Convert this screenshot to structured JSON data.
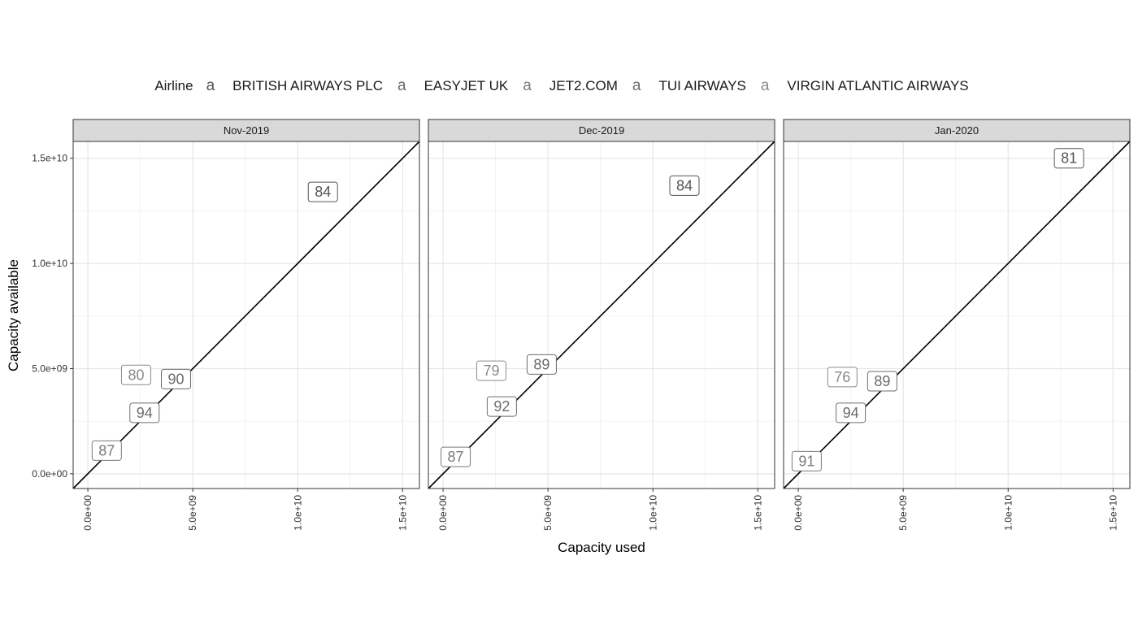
{
  "legend": {
    "title": "Airline",
    "key_glyph": "a",
    "items": [
      {
        "name": "BRITISH AIRWAYS PLC",
        "color": "#555555"
      },
      {
        "name": "EASYJET UK",
        "color": "#6b6b6b"
      },
      {
        "name": "JET2.COM",
        "color": "#7a7a7a"
      },
      {
        "name": "TUI AIRWAYS",
        "color": "#6e6e6e"
      },
      {
        "name": "VIRGIN ATLANTIC AIRWAYS",
        "color": "#8a8a8a"
      }
    ]
  },
  "chart_data": {
    "type": "scatter",
    "xlabel": "Capacity used",
    "ylabel": "Capacity available",
    "xlim": [
      -700000000,
      15800000000
    ],
    "ylim": [
      -700000000,
      15800000000
    ],
    "x_ticks": [
      "0.0e+00",
      "5.0e+09",
      "1.0e+10",
      "1.5e+10"
    ],
    "x_tick_values": [
      0,
      5000000000,
      10000000000,
      15000000000
    ],
    "y_ticks": [
      "0.0e+00",
      "5.0e+09",
      "1.0e+10",
      "1.5e+10"
    ],
    "y_tick_values": [
      0,
      5000000000,
      10000000000,
      15000000000
    ],
    "reference_line": "y = x",
    "grid": true,
    "legend_position": "top",
    "panels": [
      {
        "title": "Nov-2019",
        "labels": [
          {
            "airline": "BRITISH AIRWAYS PLC",
            "label": "84",
            "x": 11200000000,
            "y": 13400000000
          },
          {
            "airline": "VIRGIN ATLANTIC AIRWAYS",
            "label": "80",
            "x": 2300000000,
            "y": 4700000000
          },
          {
            "airline": "EASYJET UK",
            "label": "90",
            "x": 4200000000,
            "y": 4500000000
          },
          {
            "airline": "TUI AIRWAYS",
            "label": "94",
            "x": 2700000000,
            "y": 2900000000
          },
          {
            "airline": "JET2.COM",
            "label": "87",
            "x": 900000000,
            "y": 1100000000
          }
        ]
      },
      {
        "title": "Dec-2019",
        "labels": [
          {
            "airline": "BRITISH AIRWAYS PLC",
            "label": "84",
            "x": 11500000000,
            "y": 13700000000
          },
          {
            "airline": "VIRGIN ATLANTIC AIRWAYS",
            "label": "79",
            "x": 2300000000,
            "y": 4900000000
          },
          {
            "airline": "EASYJET UK",
            "label": "89",
            "x": 4700000000,
            "y": 5200000000
          },
          {
            "airline": "TUI AIRWAYS",
            "label": "92",
            "x": 2800000000,
            "y": 3200000000
          },
          {
            "airline": "JET2.COM",
            "label": "87",
            "x": 600000000,
            "y": 800000000
          }
        ]
      },
      {
        "title": "Jan-2020",
        "labels": [
          {
            "airline": "BRITISH AIRWAYS PLC",
            "label": "81",
            "x": 12900000000,
            "y": 15000000000
          },
          {
            "airline": "VIRGIN ATLANTIC AIRWAYS",
            "label": "76",
            "x": 2100000000,
            "y": 4600000000
          },
          {
            "airline": "EASYJET UK",
            "label": "89",
            "x": 4000000000,
            "y": 4400000000
          },
          {
            "airline": "TUI AIRWAYS",
            "label": "94",
            "x": 2500000000,
            "y": 2900000000
          },
          {
            "airline": "JET2.COM",
            "label": "91",
            "x": 400000000,
            "y": 600000000
          }
        ]
      }
    ]
  }
}
